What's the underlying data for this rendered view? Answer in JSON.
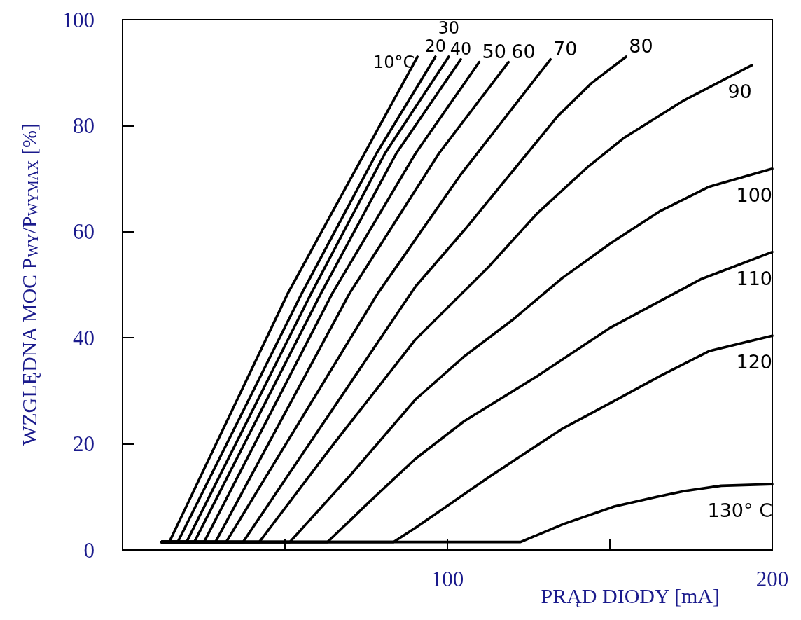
{
  "chart_data": {
    "type": "line",
    "xlabel": "PRĄD DIODY [mA]",
    "ylabel": "WZGLĘDNA MOC P$_{WY}$/P$_{WYMAX}$ [%]",
    "xlim": [
      0,
      200
    ],
    "ylim": [
      0,
      100
    ],
    "xticks": [
      {
        "value": 50,
        "label": null
      },
      100,
      {
        "value": 150,
        "label": null
      },
      200
    ],
    "yticks": [
      0,
      20,
      40,
      60,
      80,
      100
    ],
    "grid": false,
    "legend": false,
    "marker": "none",
    "line_style": "solid",
    "series": [
      {
        "name": "10°C",
        "color": "#000000",
        "x": [
          12,
          14.4,
          50.9,
          74.5,
          90.8
        ],
        "values": [
          1.5,
          1.5,
          48.4,
          74.8,
          93
        ]
      },
      {
        "name": "20",
        "color": "#000000",
        "x": [
          12,
          17,
          55.2,
          78.2,
          96.3
        ],
        "values": [
          1.5,
          1.5,
          48.4,
          74.8,
          93
        ]
      },
      {
        "name": "30",
        "color": "#000000",
        "x": [
          12,
          19.7,
          58.1,
          80.8,
          100.4
        ],
        "values": [
          1.5,
          1.5,
          48.4,
          74.8,
          93
        ]
      },
      {
        "name": "40",
        "color": "#000000",
        "x": [
          12,
          22.1,
          61.1,
          84.3,
          104.1
        ],
        "values": [
          1.5,
          1.5,
          48.4,
          74.8,
          92.5
        ]
      },
      {
        "name": "50",
        "color": "#000000",
        "x": [
          12,
          25.1,
          64.6,
          90.2,
          109.8
        ],
        "values": [
          1.5,
          1.5,
          48.4,
          74.8,
          92
        ]
      },
      {
        "name": "60",
        "color": "#000000",
        "x": [
          12,
          28.6,
          69.9,
          97.4,
          118.8
        ],
        "values": [
          1.5,
          1.5,
          48.4,
          74.8,
          92
        ]
      },
      {
        "name": "70",
        "color": "#000000",
        "x": [
          12,
          31.9,
          78.6,
          104.1,
          131.7
        ],
        "values": [
          1.5,
          1.5,
          48.4,
          70.8,
          92.5
        ]
      },
      {
        "name": "80",
        "color": "#000000",
        "x": [
          12,
          37.1,
          90.2,
          105.2,
          120.3,
          133.8,
          144.3,
          155
        ],
        "values": [
          1.5,
          1.5,
          49.7,
          60.3,
          71.6,
          81.7,
          88,
          93
        ]
      },
      {
        "name": "90",
        "color": "#000000",
        "x": [
          12,
          42.1,
          65,
          90.2,
          112.7,
          127.7,
          142.8,
          154.1,
          172.9,
          193.7
        ],
        "values": [
          1.5,
          1.5,
          20,
          39.7,
          53.4,
          63.5,
          72,
          77.6,
          84.8,
          91.4
        ]
      },
      {
        "name": "100",
        "color": "#000000",
        "x": [
          12,
          51.5,
          70,
          90.2,
          105.2,
          120.3,
          135.4,
          150.4,
          165.5,
          180.6,
          200
        ],
        "values": [
          1.5,
          1.5,
          14,
          28.4,
          36.5,
          43.5,
          51.3,
          57.9,
          63.9,
          68.5,
          71.9
        ]
      },
      {
        "name": "110",
        "color": "#000000",
        "x": [
          12,
          63.1,
          75,
          90.2,
          105.2,
          127.7,
          150.4,
          178.2,
          200
        ],
        "values": [
          1.5,
          1.5,
          8.5,
          17.2,
          24.3,
          32.8,
          42,
          51.1,
          56.2
        ]
      },
      {
        "name": "120",
        "color": "#000000",
        "x": [
          12,
          83.4,
          90.2,
          112.7,
          135.2,
          150.4,
          165.5,
          180.6,
          200
        ],
        "values": [
          1.5,
          1.5,
          4.2,
          13.7,
          22.8,
          27.8,
          32.8,
          37.5,
          40.4
        ]
      },
      {
        "name": "130° C",
        "color": "#000000",
        "x": [
          12,
          122.5,
          135.8,
          151.3,
          164.4,
          172.9,
          184.3,
          200
        ],
        "values": [
          1.5,
          1.5,
          4.9,
          8.2,
          10,
          11.1,
          12.1,
          12.4
        ]
      }
    ]
  }
}
